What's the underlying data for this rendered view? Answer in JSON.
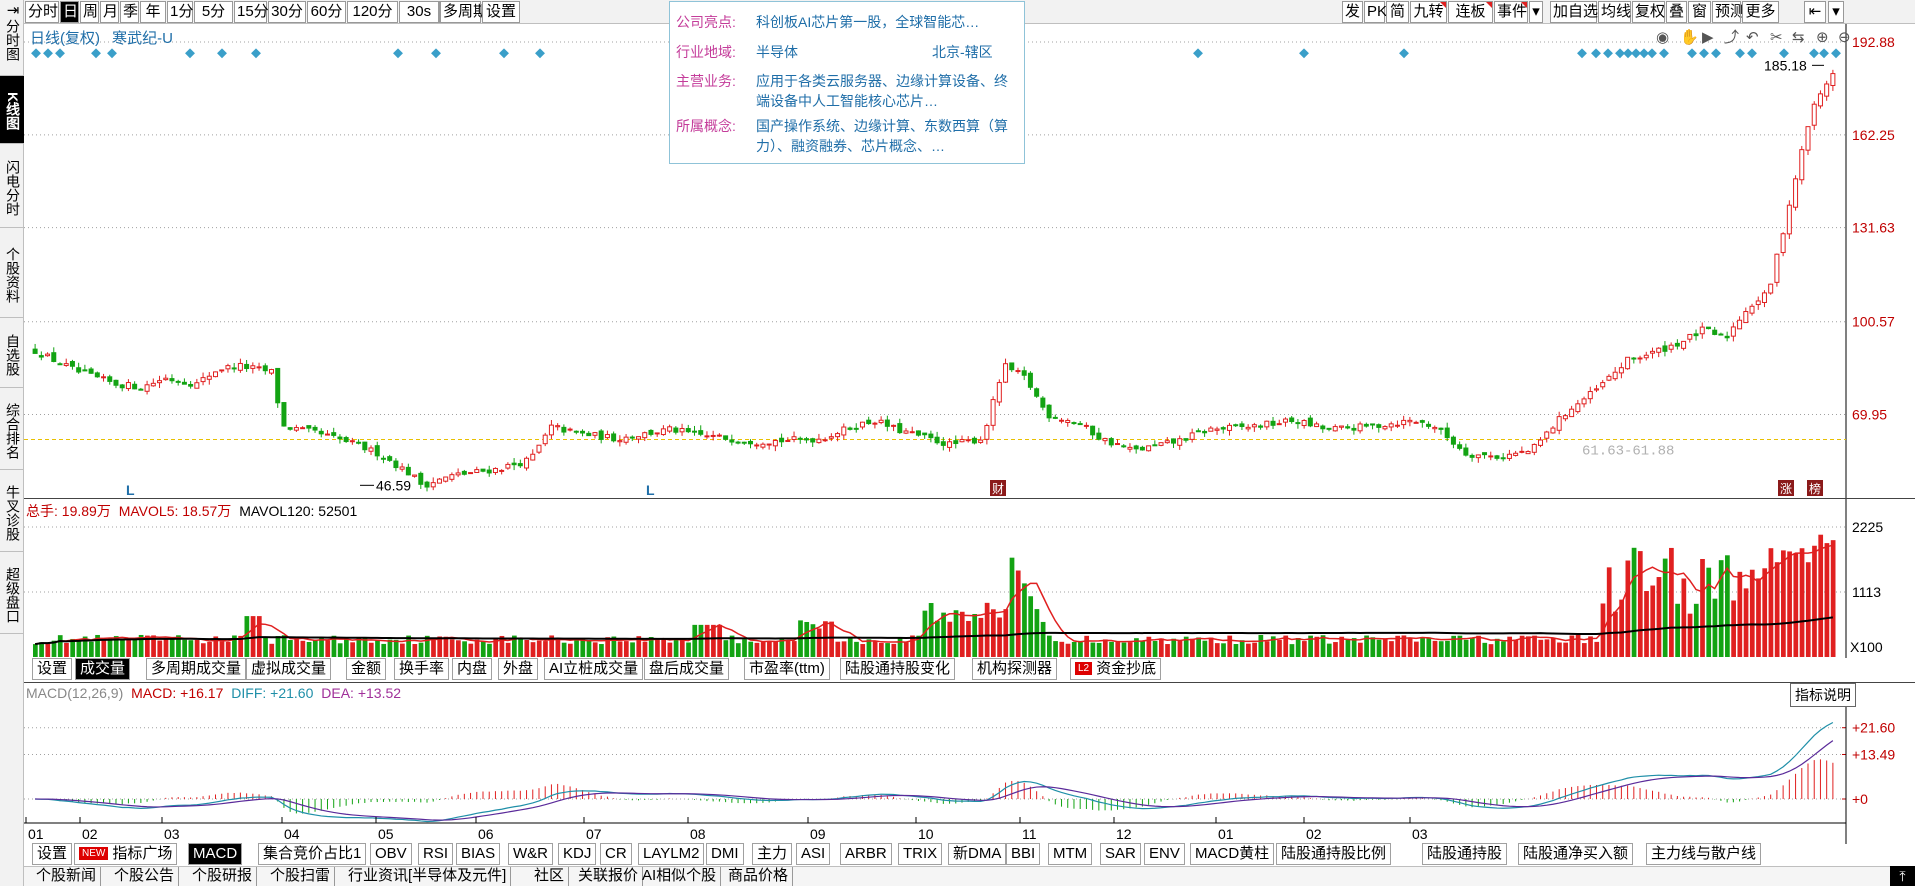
{
  "leftnav": [
    "分时图",
    "K线图",
    "闪电分时",
    "个股资料",
    "自选股",
    "综合排名",
    "牛叉诊股",
    "超级盘口"
  ],
  "toolbar": {
    "left": [
      "分时",
      "日",
      "周",
      "月",
      "季",
      "年",
      "1分",
      "5分",
      "15分",
      "30分",
      "60分",
      "120分",
      "30s",
      "多周期",
      "设置"
    ],
    "active_period": "日",
    "right": [
      "发",
      "PK",
      "简",
      "九转",
      "连板",
      "事件",
      "加自选",
      "均线",
      "复权",
      "叠",
      "窗",
      "预测",
      "更多"
    ]
  },
  "kline": {
    "title": "日线(复权)",
    "stock": "寒武纪-U",
    "yticks": [
      "192.88",
      "162.25",
      "131.63",
      "100.57",
      "69.95"
    ],
    "high_label": "185.18",
    "low_label": "46.59",
    "range_label": "61.63-61.88",
    "markers": [
      "L",
      "L",
      "财",
      "涨",
      "榜"
    ]
  },
  "info": {
    "highlight_label": "公司亮点:",
    "highlight": "科创板AI芯片第一股，全球智能芯…",
    "industry_label": "行业地域:",
    "industry": "半导体",
    "region": "北京-辖区",
    "business_label": "主营业务:",
    "business": "应用于各类云服务器、边缘计算设备、终端设备中人工智能核心芯片…",
    "concept_label": "所属概念:",
    "concept": "国产操作系统、边缘计算、东数西算（算力）、融资融券、芯片概念、…"
  },
  "volume": {
    "legend_total": "总手: 19.89万",
    "legend_ma5": "MAVOL5: 18.57万",
    "legend_ma120": "MAVOL120: 52501",
    "yticks": [
      "2225",
      "1113"
    ],
    "unit": "X100",
    "tabs": [
      "设置",
      "成交量",
      "多周期成交量",
      "虚拟成交量",
      "金额",
      "换手率",
      "内盘",
      "外盘",
      "AI立桩成交量",
      "盘后成交量",
      "市盈率(ttm)",
      "陆股通持股变化",
      "机构探测器",
      "资金抄底"
    ],
    "active_tab": "成交量",
    "l2_badge": "L2"
  },
  "macd": {
    "legend_params": "MACD(12,26,9)",
    "legend_macd": "MACD: +16.17",
    "legend_diff": "DIFF: +21.60",
    "legend_dea": "DEA: +13.52",
    "yticks": [
      "+21.60",
      "+13.49",
      "+0"
    ],
    "explain_btn": "指标说明",
    "months": [
      "01",
      "02",
      "03",
      "04",
      "05",
      "06",
      "07",
      "08",
      "09",
      "10",
      "11",
      "12",
      "01",
      "02",
      "03"
    ]
  },
  "indicator_tabs": [
    "设置",
    "指标广场",
    "MACD",
    "集合竞价占比1",
    "OBV",
    "RSI",
    "BIAS",
    "W&R",
    "KDJ",
    "CR",
    "LAYLM2",
    "DMI",
    "主力",
    "ASI",
    "ARBR",
    "TRIX",
    "新DMA",
    "BBI",
    "MTM",
    "SAR",
    "ENV",
    "MACD黄柱",
    "陆股通持股比例",
    "陆股通持股",
    "陆股通净买入额",
    "主力线与散户线"
  ],
  "active_indicator": "MACD",
  "new_badge": "NEW",
  "news_tabs": [
    "个股新闻",
    "个股公告",
    "个股研报",
    "个股扫雷",
    "行业资讯[半导体及元件]",
    "社区",
    "关联报价",
    "AI相似个股",
    "商品价格"
  ],
  "colors": {
    "up": "#e02020",
    "down": "#13a313",
    "axis": "#c00000",
    "grid": "#a0a0a0",
    "info": "#1f6ea8",
    "marker": "#3a9fc9"
  }
}
